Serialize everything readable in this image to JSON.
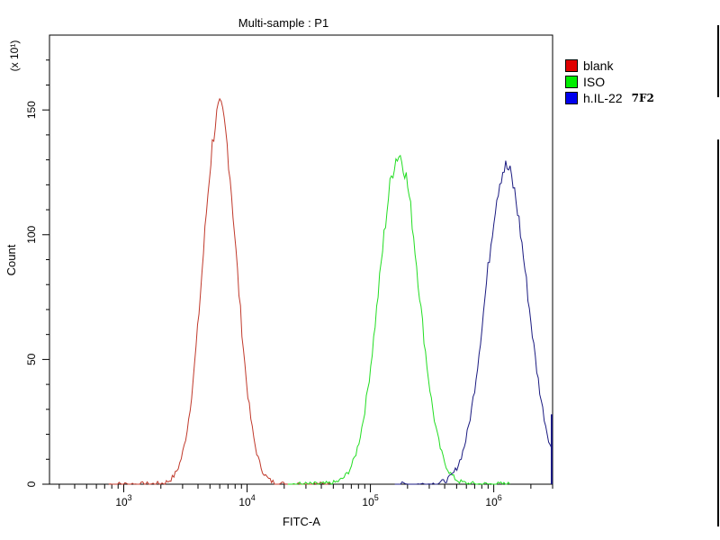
{
  "chart_data": {
    "type": "line",
    "title": "Multi-sample : P1",
    "xlabel": "FITC-A",
    "ylabel": "Count",
    "y_multiplier": "(x 10¹)",
    "x_scale": "log",
    "xlim": [
      250,
      3000000
    ],
    "ylim": [
      0,
      180
    ],
    "yticks": [
      0,
      50,
      100,
      150
    ],
    "xticks": [
      {
        "value": 1000,
        "base": "10",
        "exp": "3"
      },
      {
        "value": 10000,
        "base": "10",
        "exp": "4"
      },
      {
        "value": 100000,
        "base": "10",
        "exp": "5"
      },
      {
        "value": 1000000,
        "base": "10",
        "exp": "6"
      }
    ],
    "grid": false,
    "legend_position": "right",
    "series": [
      {
        "name": "blank",
        "color": "#c0392b",
        "legend_color": "#e00000",
        "x_peak": 6000,
        "width": 0.135,
        "peak": 150,
        "skew": 0.0
      },
      {
        "name": "ISO",
        "color": "#22dd22",
        "legend_color": "#00ee00",
        "x_peak": 170000,
        "width": 0.16,
        "peak": 132,
        "skew": 0.0
      },
      {
        "name": "h.IL-22",
        "suffix": "7F2",
        "color": "#1a1a80",
        "legend_color": "#0000ee",
        "x_peak": 1250000,
        "width": 0.17,
        "peak": 127,
        "skew": 0.04
      }
    ]
  }
}
